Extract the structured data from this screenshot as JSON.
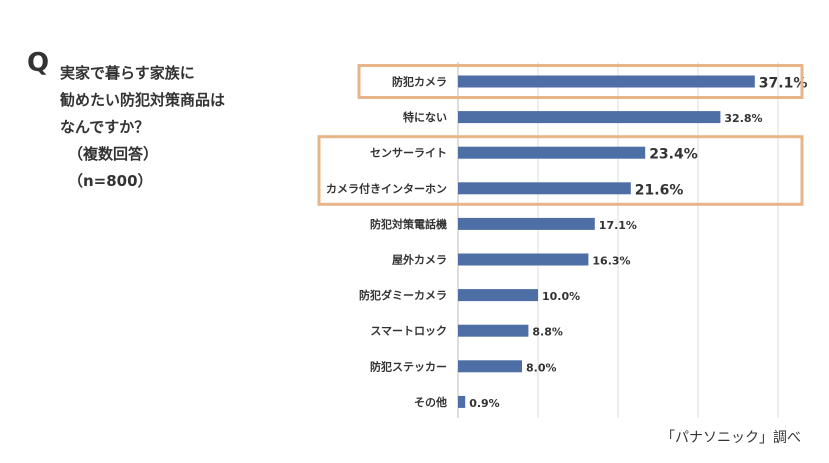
{
  "question": {
    "mark": "Q",
    "lines": [
      "実家で暮らす家族に",
      "勧めたい防犯対策商品は",
      "なんですか？",
      "（複数回答）",
      "（n=800）"
    ]
  },
  "source": "「パナソニック」調べ",
  "colors": {
    "bar": "#4e6ea6",
    "highlight_box": "#e8b588",
    "grid": "#dddddd",
    "axis": "#bbbbbb"
  },
  "chart_data": {
    "type": "bar",
    "orientation": "horizontal",
    "categories": [
      "防犯カメラ",
      "特にない",
      "センサーライト",
      "カメラ付きインターホン",
      "防犯対策電話機",
      "屋外カメラ",
      "防犯ダミーカメラ",
      "スマートロック",
      "防犯ステッカー",
      "その他"
    ],
    "values": [
      37.1,
      32.8,
      23.4,
      21.6,
      17.1,
      16.3,
      10.0,
      8.8,
      8.0,
      0.9
    ],
    "data_labels": [
      "37.1%",
      "32.8%",
      "23.4%",
      "21.6%",
      "17.1%",
      "16.3%",
      "10.0%",
      "8.8%",
      "8.0%",
      "0.9%"
    ],
    "highlighted": [
      0,
      2,
      3
    ],
    "xlim": [
      0,
      40
    ],
    "grid": true,
    "title": "",
    "xlabel": "",
    "ylabel": ""
  }
}
